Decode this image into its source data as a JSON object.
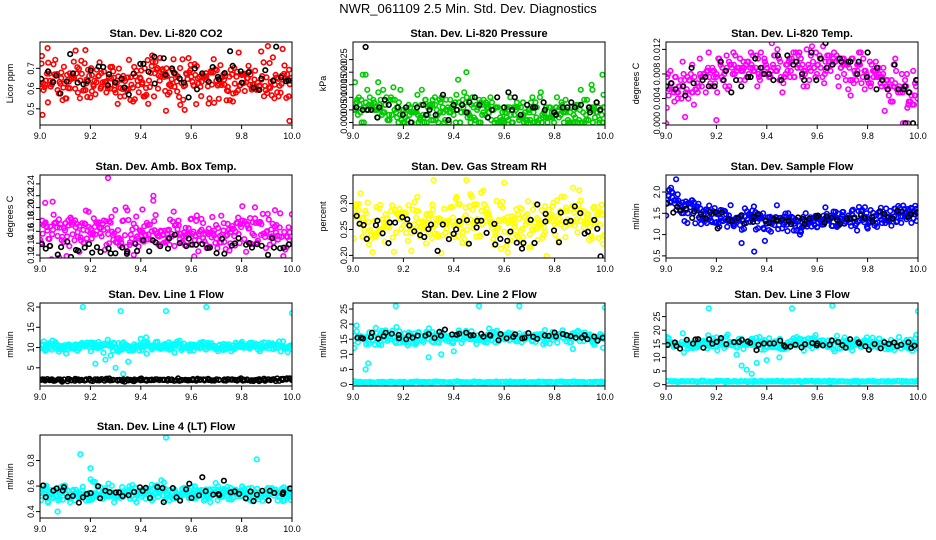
{
  "page_title": "NWR_061109  2.5 Min. Std. Dev. Diagnostics",
  "colors": {
    "black_series": "#000000",
    "red": "#ff0000",
    "green": "#00cc00",
    "magenta": "#ff00ff",
    "yellow": "#ffff00",
    "blue": "#0000ff",
    "cyan": "#00ffff"
  },
  "chart_data": [
    {
      "type": "scatter",
      "title": "Stan. Dev. Li-820 CO2",
      "ylabel": "Licor ppm",
      "xlabel": "",
      "x_range": [
        9.0,
        10.0
      ],
      "ylim": [
        0.42,
        0.83
      ],
      "xticks": [
        "9.0",
        "9.2",
        "9.4",
        "9.6",
        "9.8",
        "10.0"
      ],
      "yticks": [
        {
          "v": 0.5,
          "label": "0.5"
        },
        {
          "v": 0.6,
          "label": "0.6"
        },
        {
          "v": 0.7,
          "label": "0.7"
        }
      ],
      "series": [
        {
          "name": "main",
          "color": "red",
          "n": 320,
          "center": 0.64,
          "spread": 0.055,
          "trend": [],
          "outliers": [
            {
              "x": 9.01,
              "y": 0.47
            },
            {
              "x": 9.03,
              "y": 0.8
            },
            {
              "x": 9.18,
              "y": 0.79
            },
            {
              "x": 9.5,
              "y": 0.49
            },
            {
              "x": 9.99,
              "y": 0.44
            }
          ]
        },
        {
          "name": "overlay",
          "color": "black_series",
          "n": 55,
          "center": 0.66,
          "spread": 0.05,
          "trend": [],
          "outliers": []
        }
      ]
    },
    {
      "type": "scatter",
      "title": "Stan. Dev. Li-820 Pressure",
      "ylabel": "kPa",
      "xlabel": "",
      "x_range": [
        9.0,
        10.0
      ],
      "ylim": [
        -0.001,
        0.032
      ],
      "xticks": [
        "9.0",
        "9.2",
        "9.4",
        "9.6",
        "9.8",
        "10.0"
      ],
      "yticks": [
        {
          "v": 0.0,
          "label": "0.000"
        },
        {
          "v": 0.005,
          "label": "0.005"
        },
        {
          "v": 0.01,
          "label": "0.010"
        },
        {
          "v": 0.015,
          "label": "0.015"
        },
        {
          "v": 0.02,
          "label": "0.020"
        },
        {
          "v": 0.025,
          "label": "0.025"
        }
      ],
      "series": [
        {
          "name": "main",
          "color": "green",
          "n": 320,
          "center": 0.004,
          "spread": 0.0038,
          "quant": 0.001,
          "trend": [
            {
              "x": 9.0,
              "y": 0.01
            },
            {
              "x": 9.15,
              "y": 0.006
            },
            {
              "x": 9.4,
              "y": 0.0035
            },
            {
              "x": 10.0,
              "y": 0.004
            }
          ],
          "outliers": [
            {
              "x": 9.05,
              "y": 0.019
            },
            {
              "x": 9.1,
              "y": 0.016
            },
            {
              "x": 9.45,
              "y": 0.02
            },
            {
              "x": 9.99,
              "y": 0.019
            },
            {
              "x": 9.95,
              "y": 0.013
            }
          ]
        },
        {
          "name": "overlay",
          "color": "black_series",
          "n": 50,
          "center": 0.006,
          "spread": 0.0025,
          "quant": 0.001,
          "trend": [],
          "outliers": [
            {
              "x": 9.05,
              "y": 0.03
            }
          ]
        }
      ]
    },
    {
      "type": "scatter",
      "title": "Stan. Dev. Li-820 Temp.",
      "ylabel": "degrees C",
      "xlabel": "",
      "x_range": [
        9.0,
        10.0
      ],
      "ylim": [
        -0.0003,
        0.0132
      ],
      "xticks": [
        "9.0",
        "9.2",
        "9.4",
        "9.6",
        "9.8",
        "10.0"
      ],
      "yticks": [
        {
          "v": 0.0,
          "label": "0.000"
        },
        {
          "v": 0.004,
          "label": "0.004"
        },
        {
          "v": 0.008,
          "label": "0.008"
        },
        {
          "v": 0.012,
          "label": "0.012"
        }
      ],
      "series": [
        {
          "name": "main",
          "color": "magenta",
          "n": 320,
          "center": 0.007,
          "spread": 0.0016,
          "quant": 0.0005,
          "trend": [
            {
              "x": 9.0,
              "y": 0.0055
            },
            {
              "x": 9.3,
              "y": 0.009
            },
            {
              "x": 9.7,
              "y": 0.0095
            },
            {
              "x": 9.85,
              "y": 0.007
            },
            {
              "x": 10.0,
              "y": 0.005
            }
          ],
          "outliers": [
            {
              "x": 9.0,
              "y": 0.0
            },
            {
              "x": 9.2,
              "y": 0.0005
            },
            {
              "x": 9.94,
              "y": 0.0
            },
            {
              "x": 9.96,
              "y": 0.0
            }
          ]
        },
        {
          "name": "overlay",
          "color": "black_series",
          "n": 55,
          "center": 0.0075,
          "spread": 0.0015,
          "quant": 0.0005,
          "trend": [
            {
              "x": 9.0,
              "y": 0.0055
            },
            {
              "x": 9.3,
              "y": 0.0085
            },
            {
              "x": 9.7,
              "y": 0.0095
            },
            {
              "x": 10.0,
              "y": 0.005
            }
          ],
          "outliers": [
            {
              "x": 9.95,
              "y": 0.0
            },
            {
              "x": 9.98,
              "y": 0.0
            }
          ]
        }
      ]
    },
    {
      "type": "scatter",
      "title": "Stan. Dev. Amb. Box Temp.",
      "ylabel": "degrees C",
      "xlabel": "",
      "x_range": [
        9.0,
        10.0
      ],
      "ylim": [
        0.115,
        0.255
      ],
      "xticks": [
        "9.0",
        "9.2",
        "9.4",
        "9.6",
        "9.8",
        "10.0"
      ],
      "yticks": [
        {
          "v": 0.12,
          "label": "0.12"
        },
        {
          "v": 0.14,
          "label": "0.14"
        },
        {
          "v": 0.16,
          "label": "0.16"
        },
        {
          "v": 0.18,
          "label": "0.18"
        },
        {
          "v": 0.2,
          "label": "0.20"
        },
        {
          "v": 0.22,
          "label": "0.22"
        },
        {
          "v": 0.24,
          "label": "0.24"
        }
      ],
      "series": [
        {
          "name": "main",
          "color": "magenta",
          "n": 320,
          "center": 0.158,
          "spread": 0.017,
          "trend": [],
          "outliers": [
            {
              "x": 9.27,
              "y": 0.25
            },
            {
              "x": 9.05,
              "y": 0.21
            },
            {
              "x": 9.45,
              "y": 0.22
            }
          ]
        },
        {
          "name": "overlay",
          "color": "black_series",
          "n": 55,
          "center": 0.135,
          "spread": 0.01,
          "trend": [],
          "outliers": []
        }
      ]
    },
    {
      "type": "scatter",
      "title": "Stan. Dev. Gas Stream RH",
      "ylabel": "percent",
      "xlabel": "",
      "x_range": [
        9.0,
        10.0
      ],
      "ylim": [
        0.195,
        0.355
      ],
      "xticks": [
        "9.0",
        "9.2",
        "9.4",
        "9.6",
        "9.8",
        "10.0"
      ],
      "yticks": [
        {
          "v": 0.2,
          "label": "0.20"
        },
        {
          "v": 0.25,
          "label": "0.25"
        },
        {
          "v": 0.3,
          "label": "0.30"
        }
      ],
      "series": [
        {
          "name": "main",
          "color": "yellow",
          "n": 320,
          "center": 0.265,
          "spread": 0.024,
          "trend": [],
          "outliers": [
            {
              "x": 9.45,
              "y": 0.345
            },
            {
              "x": 9.6,
              "y": 0.34
            },
            {
              "x": 9.32,
              "y": 0.345
            },
            {
              "x": 9.7,
              "y": 0.215
            }
          ]
        },
        {
          "name": "overlay",
          "color": "black_series",
          "n": 55,
          "center": 0.255,
          "spread": 0.022,
          "trend": [],
          "outliers": []
        }
      ]
    },
    {
      "type": "scatter",
      "title": "Stan. Dev. Sample Flow",
      "ylabel": "ml/min",
      "xlabel": "",
      "x_range": [
        9.0,
        10.0
      ],
      "ylim": [
        0.45,
        2.4
      ],
      "xticks": [
        "9.0",
        "9.2",
        "9.4",
        "9.6",
        "9.8",
        "10.0"
      ],
      "yticks": [
        {
          "v": 0.5,
          "label": "0.5"
        },
        {
          "v": 1.0,
          "label": "1.0"
        },
        {
          "v": 1.5,
          "label": "1.5"
        },
        {
          "v": 2.0,
          "label": "2.0"
        }
      ],
      "series": [
        {
          "name": "main",
          "color": "blue",
          "n": 340,
          "center": 1.4,
          "spread": 0.13,
          "trend": [
            {
              "x": 9.0,
              "y": 1.85
            },
            {
              "x": 9.08,
              "y": 1.6
            },
            {
              "x": 9.2,
              "y": 1.4
            },
            {
              "x": 9.5,
              "y": 1.3
            },
            {
              "x": 9.8,
              "y": 1.4
            },
            {
              "x": 10.0,
              "y": 1.5
            }
          ],
          "outliers": [
            {
              "x": 9.04,
              "y": 2.3
            },
            {
              "x": 9.02,
              "y": 2.1
            },
            {
              "x": 9.35,
              "y": 0.6
            },
            {
              "x": 9.3,
              "y": 0.8
            }
          ]
        },
        {
          "name": "overlay",
          "color": "black_series",
          "n": 55,
          "center": 1.4,
          "spread": 0.08,
          "trend": [
            {
              "x": 9.0,
              "y": 1.7
            },
            {
              "x": 9.2,
              "y": 1.4
            },
            {
              "x": 9.5,
              "y": 1.3
            },
            {
              "x": 10.0,
              "y": 1.5
            }
          ],
          "outliers": []
        }
      ]
    },
    {
      "type": "scatter",
      "title": "Stan. Dev. Line 1 Flow",
      "ylabel": "ml/min",
      "xlabel": "",
      "x_range": [
        9.0,
        10.0
      ],
      "ylim": [
        0.5,
        21
      ],
      "xticks": [
        "9.0",
        "9.2",
        "9.4",
        "9.6",
        "9.8",
        "10.0"
      ],
      "yticks": [
        {
          "v": 5,
          "label": "5"
        },
        {
          "v": 10,
          "label": "10"
        },
        {
          "v": 15,
          "label": "15"
        },
        {
          "v": 20,
          "label": "20"
        }
      ],
      "series": [
        {
          "name": "main",
          "color": "cyan",
          "n": 320,
          "center": 10.3,
          "spread": 0.6,
          "trend": [],
          "outliers": [
            {
              "x": 9.17,
              "y": 20
            },
            {
              "x": 9.32,
              "y": 19
            },
            {
              "x": 9.5,
              "y": 19
            },
            {
              "x": 9.66,
              "y": 20
            },
            {
              "x": 10.0,
              "y": 18.5
            },
            {
              "x": 9.26,
              "y": 7
            },
            {
              "x": 9.3,
              "y": 5
            },
            {
              "x": 9.33,
              "y": 3.5
            },
            {
              "x": 9.28,
              "y": 8
            },
            {
              "x": 9.35,
              "y": 6.5
            },
            {
              "x": 9.22,
              "y": 6
            },
            {
              "x": 9.31,
              "y": 9
            }
          ]
        },
        {
          "name": "overlay",
          "color": "black_series",
          "n": 60,
          "center": 2.0,
          "spread": 0.15,
          "trend": [],
          "outliers": []
        },
        {
          "name": "floor",
          "color": "black_series",
          "n": 100,
          "center": 2.0,
          "spread": 0.15,
          "trend": [],
          "outliers": []
        }
      ]
    },
    {
      "type": "scatter",
      "title": "Stan. Dev. Line 2 Flow",
      "ylabel": "ml/min",
      "xlabel": "",
      "x_range": [
        9.0,
        10.0
      ],
      "ylim": [
        -0.5,
        27
      ],
      "xticks": [
        "9.0",
        "9.2",
        "9.4",
        "9.6",
        "9.8",
        "10.0"
      ],
      "yticks": [
        {
          "v": 0,
          "label": "0"
        },
        {
          "v": 5,
          "label": "5"
        },
        {
          "v": 10,
          "label": "10"
        },
        {
          "v": 15,
          "label": "15"
        },
        {
          "v": 20,
          "label": "20"
        },
        {
          "v": 25,
          "label": "25"
        }
      ],
      "series": [
        {
          "name": "main",
          "color": "cyan",
          "n": 280,
          "center": 15.5,
          "spread": 1.2,
          "trend": [],
          "outliers": [
            {
              "x": 9.17,
              "y": 26
            },
            {
              "x": 9.5,
              "y": 26
            },
            {
              "x": 9.66,
              "y": 26
            },
            {
              "x": 10.0,
              "y": 25.5
            },
            {
              "x": 9.06,
              "y": 7
            },
            {
              "x": 9.05,
              "y": 5
            },
            {
              "x": 9.3,
              "y": 9
            },
            {
              "x": 9.35,
              "y": 10
            },
            {
              "x": 9.4,
              "y": 11
            }
          ]
        },
        {
          "name": "floor",
          "color": "cyan",
          "n": 140,
          "center": 0.8,
          "spread": 0.12,
          "trend": [],
          "outliers": []
        },
        {
          "name": "overlay",
          "color": "black_series",
          "n": 55,
          "center": 16,
          "spread": 0.9,
          "trend": [],
          "outliers": []
        }
      ]
    },
    {
      "type": "scatter",
      "title": "Stan. Dev. Line 3 Flow",
      "ylabel": "ml/min",
      "xlabel": "",
      "x_range": [
        9.0,
        10.0
      ],
      "ylim": [
        -0.5,
        30
      ],
      "xticks": [
        "9.0",
        "9.2",
        "9.4",
        "9.6",
        "9.8",
        "10.0"
      ],
      "yticks": [
        {
          "v": 0,
          "label": "0"
        },
        {
          "v": 5,
          "label": "5"
        },
        {
          "v": 10,
          "label": "10"
        },
        {
          "v": 15,
          "label": "15"
        },
        {
          "v": 20,
          "label": "20"
        },
        {
          "v": 25,
          "label": "25"
        }
      ],
      "series": [
        {
          "name": "main",
          "color": "cyan",
          "n": 280,
          "center": 15.2,
          "spread": 1.2,
          "trend": [],
          "outliers": [
            {
              "x": 9.17,
              "y": 28
            },
            {
              "x": 9.5,
              "y": 28
            },
            {
              "x": 9.66,
              "y": 29
            },
            {
              "x": 10.0,
              "y": 27
            },
            {
              "x": 9.3,
              "y": 7
            },
            {
              "x": 9.32,
              "y": 5.5
            },
            {
              "x": 9.36,
              "y": 8
            },
            {
              "x": 9.4,
              "y": 9
            },
            {
              "x": 9.45,
              "y": 10
            },
            {
              "x": 9.28,
              "y": 11
            },
            {
              "x": 9.34,
              "y": 4
            }
          ]
        },
        {
          "name": "floor",
          "color": "cyan",
          "n": 140,
          "center": 1.2,
          "spread": 0.12,
          "trend": [],
          "outliers": []
        },
        {
          "name": "overlay",
          "color": "black_series",
          "n": 55,
          "center": 15,
          "spread": 1.0,
          "trend": [],
          "outliers": []
        }
      ]
    },
    {
      "type": "scatter",
      "title": "Stan. Dev. Line 4 (LT) Flow",
      "ylabel": "ml/min",
      "xlabel": "",
      "x_range": [
        9.0,
        10.0
      ],
      "ylim": [
        0.35,
        1.0
      ],
      "xticks": [
        "9.0",
        "9.2",
        "9.4",
        "9.6",
        "9.8",
        "10.0"
      ],
      "yticks": [
        {
          "v": 0.4,
          "label": "0.4"
        },
        {
          "v": 0.6,
          "label": "0.6"
        },
        {
          "v": 0.8,
          "label": "0.8"
        }
      ],
      "series": [
        {
          "name": "main",
          "color": "cyan",
          "n": 320,
          "center": 0.545,
          "spread": 0.035,
          "trend": [],
          "outliers": [
            {
              "x": 9.16,
              "y": 0.85
            },
            {
              "x": 9.5,
              "y": 0.98
            },
            {
              "x": 9.86,
              "y": 0.81
            },
            {
              "x": 9.2,
              "y": 0.74
            },
            {
              "x": 9.07,
              "y": 0.4
            }
          ]
        },
        {
          "name": "overlay",
          "color": "black_series",
          "n": 55,
          "center": 0.55,
          "spread": 0.04,
          "trend": [],
          "outliers": []
        }
      ]
    }
  ]
}
